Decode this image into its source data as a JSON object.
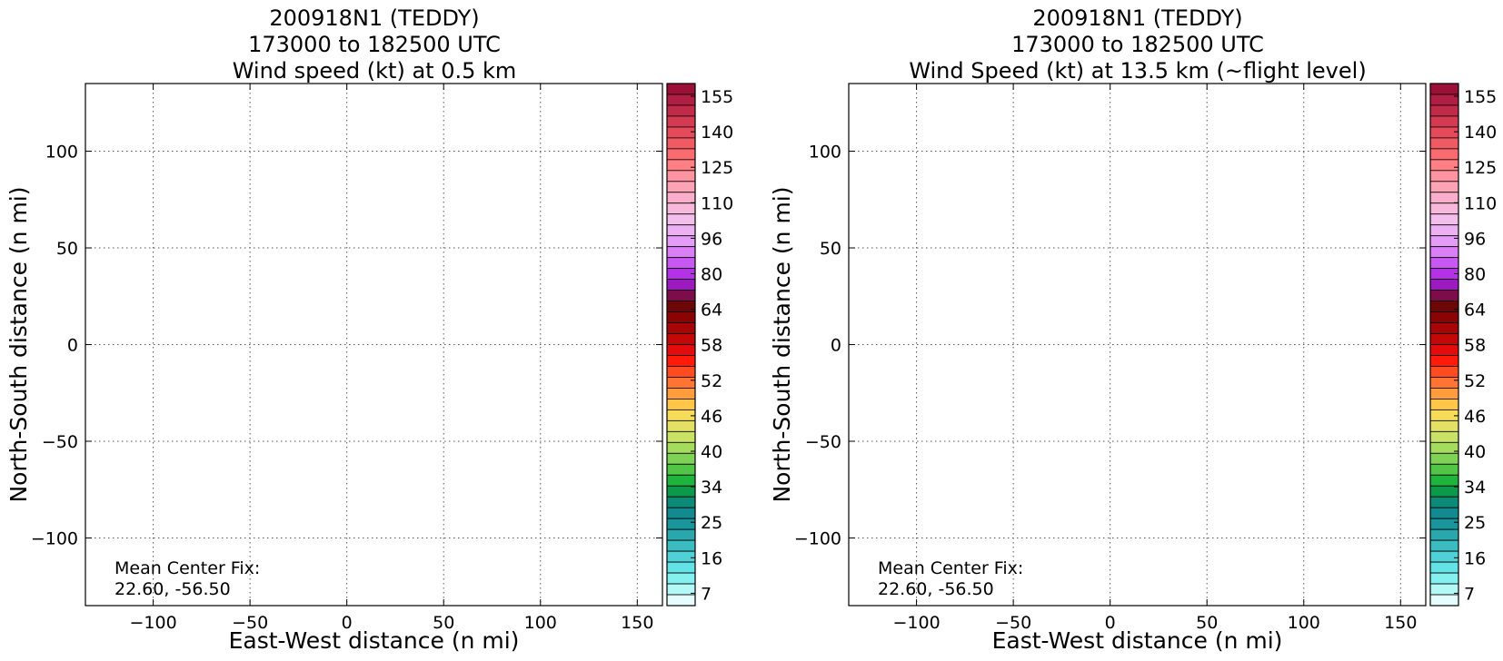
{
  "chart_data": [
    {
      "type": "scatter",
      "title": [
        "200918N1 (TEDDY)",
        "173000 to 182500 UTC",
        "Wind speed (kt) at 0.5 km"
      ],
      "xlabel": "East-West distance (n mi)",
      "ylabel": "North-South distance (n mi)",
      "xlim": [
        -135,
        163
      ],
      "ylim": [
        -135,
        135
      ],
      "xticks": [
        -100,
        -50,
        0,
        50,
        100,
        150
      ],
      "yticks": [
        -100,
        -50,
        0,
        50,
        100
      ],
      "xtick_labels": [
        "−100",
        "−50",
        "0",
        "50",
        "100",
        "150"
      ],
      "ytick_labels": [
        "−100",
        "−50",
        "0",
        "50",
        "100"
      ],
      "grid": true,
      "series": [],
      "annotation": [
        "Mean Center Fix:",
        "22.60, -56.50"
      ]
    },
    {
      "type": "scatter",
      "title": [
        "200918N1 (TEDDY)",
        "173000 to 182500 UTC",
        "Wind Speed (kt) at 13.5 km (~flight level)"
      ],
      "xlabel": "East-West distance (n mi)",
      "ylabel": "North-South distance (n mi)",
      "xlim": [
        -135,
        163
      ],
      "ylim": [
        -135,
        135
      ],
      "xticks": [
        -100,
        -50,
        0,
        50,
        100,
        150
      ],
      "yticks": [
        -100,
        -50,
        0,
        50,
        100
      ],
      "xtick_labels": [
        "−100",
        "−50",
        "0",
        "50",
        "100",
        "150"
      ],
      "ytick_labels": [
        "−100",
        "−50",
        "0",
        "50",
        "100"
      ],
      "grid": true,
      "series": [],
      "annotation": [
        "Mean Center Fix:",
        "22.60, -56.50"
      ]
    }
  ],
  "colorbar": {
    "labels": [
      "155",
      "140",
      "125",
      "110",
      "96",
      "80",
      "64",
      "58",
      "52",
      "46",
      "40",
      "34",
      "25",
      "16",
      "7"
    ],
    "colors": [
      "#9c1038",
      "#b01f43",
      "#c22a49",
      "#d43b52",
      "#e44a5a",
      "#f05a63",
      "#fa6b70",
      "#ff7f85",
      "#fd94a0",
      "#fda3b6",
      "#faaecb",
      "#f7b8dc",
      "#f3bdec",
      "#edb1f3",
      "#e59cf6",
      "#da7ff6",
      "#c957f2",
      "#b431e5",
      "#9c1ac0",
      "#7c0d4a",
      "#6d0606",
      "#8a0404",
      "#a70606",
      "#c40808",
      "#e30b0b",
      "#ff1a0a",
      "#ff4b20",
      "#ff7433",
      "#ff9d3e",
      "#ffc64a",
      "#f6dc58",
      "#e4e066",
      "#c9e165",
      "#a6dc5e",
      "#7fd255",
      "#52c446",
      "#1fb43c",
      "#0c9a4a",
      "#0e8a78",
      "#128a8f",
      "#1a959c",
      "#2aa7ac",
      "#3cbcc1",
      "#4fd1d6",
      "#63e3e6",
      "#84f0f0",
      "#b5f8f8",
      "#e6fdfd"
    ]
  }
}
